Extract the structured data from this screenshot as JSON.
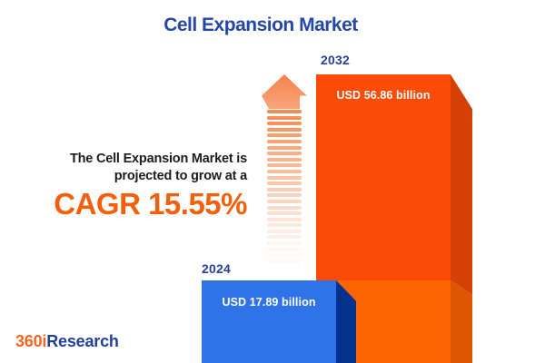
{
  "title": {
    "text": "Cell Expansion Market"
  },
  "promo": {
    "line1": "The Cell Expansion Market is",
    "line2": "projected to grow at a",
    "cagr": "CAGR 15.55%"
  },
  "bars": [
    {
      "year": "2024",
      "value_label": "USD 17.89 billion"
    },
    {
      "year": "2032",
      "value_label": "USD 56.86 billion"
    }
  ],
  "arrow": {
    "dash_count": 26,
    "direction": "up"
  },
  "logo": {
    "part1": "360i",
    "part2": "Research"
  },
  "colors": {
    "background": "#ffffff",
    "title": "#2447a8",
    "year_label": "#27409b",
    "text_dark": "#1c1c1c",
    "cagr": "#f2600e",
    "value_text": "#ffffff",
    "bar2024_front": "#2e73e8",
    "bar2024_side": "#04318c",
    "bar2032_front_top": "#fa4b08",
    "bar2032_front_bottom": "#fc6502",
    "bar2032_side_top": "#d54004",
    "bar2032_side_bottom": "#df5501",
    "arrow_head_top": "#f6814a",
    "arrow_head_bottom": "#f9a57c",
    "arrow_dash": "#f57f3e",
    "logo_orange": "#f26522",
    "logo_blue": "#20409a"
  },
  "chart_data": {
    "type": "bar",
    "title": "Cell Expansion Market",
    "categories": [
      "2024",
      "2032"
    ],
    "values": [
      17.89,
      56.86
    ],
    "unit": "USD billion",
    "cagr_percent": 15.55,
    "annotation": "The Cell Expansion Market is projected to grow at a CAGR 15.55%",
    "legend": "off",
    "axes": "off"
  }
}
